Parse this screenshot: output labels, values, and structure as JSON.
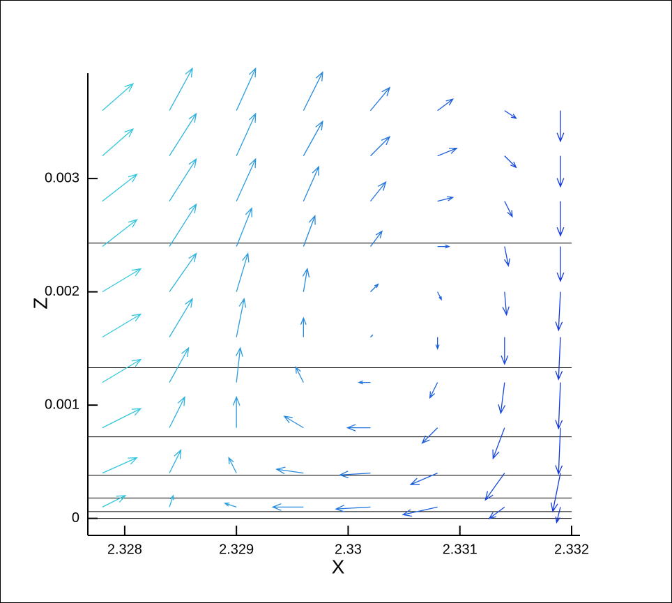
{
  "chart_data": {
    "type": "quiver",
    "xlabel": "X",
    "ylabel": "Z",
    "xlim": [
      2.32767,
      2.332
    ],
    "ylim": [
      -0.00015,
      0.00393
    ],
    "xticks": [
      2.328,
      2.329,
      2.33,
      2.331,
      2.332
    ],
    "yticks": [
      0,
      0.001,
      0.002,
      0.003
    ],
    "hlines": [
      0,
      6e-05,
      0.00018,
      0.00038,
      0.00072,
      0.00133,
      0.00243
    ],
    "color_range": [
      "#33ccdd",
      "#1133dd"
    ],
    "x": [
      2.3278,
      2.3278,
      2.3278,
      2.3278,
      2.3278,
      2.3278,
      2.3278,
      2.3278,
      2.3278,
      2.3278,
      2.3284,
      2.3284,
      2.3284,
      2.3284,
      2.3284,
      2.3284,
      2.3284,
      2.3284,
      2.3284,
      2.3284,
      2.329,
      2.329,
      2.329,
      2.329,
      2.329,
      2.329,
      2.329,
      2.329,
      2.329,
      2.329,
      2.3296,
      2.3296,
      2.3296,
      2.3296,
      2.3296,
      2.3296,
      2.3296,
      2.3296,
      2.3296,
      2.3296,
      2.3302,
      2.3302,
      2.3302,
      2.3302,
      2.3302,
      2.3302,
      2.3302,
      2.3302,
      2.3302,
      2.3302,
      2.3308,
      2.3308,
      2.3308,
      2.3308,
      2.3308,
      2.3308,
      2.3308,
      2.3308,
      2.3308,
      2.3308,
      2.3314,
      2.3314,
      2.3314,
      2.3314,
      2.3314,
      2.3314,
      2.3314,
      2.3314,
      2.3314,
      2.3314,
      2.3319,
      2.3319,
      2.3319,
      2.3319,
      2.3319,
      2.3319,
      2.3319,
      2.3319,
      2.3319,
      2.3319
    ],
    "y": [
      0.0001,
      0.0004,
      0.0008,
      0.0012,
      0.0016,
      0.002,
      0.0024,
      0.0028,
      0.0032,
      0.0036,
      0.0001,
      0.0004,
      0.0008,
      0.0012,
      0.0016,
      0.002,
      0.0024,
      0.0028,
      0.0032,
      0.0036,
      0.0001,
      0.0004,
      0.0008,
      0.0012,
      0.0016,
      0.002,
      0.0024,
      0.0028,
      0.0032,
      0.0036,
      0.0001,
      0.0004,
      0.0008,
      0.0012,
      0.0016,
      0.002,
      0.0024,
      0.0028,
      0.0032,
      0.0036,
      0.0001,
      0.0004,
      0.0008,
      0.0012,
      0.0016,
      0.002,
      0.0024,
      0.0028,
      0.0032,
      0.0036,
      0.0001,
      0.0004,
      0.0008,
      0.0012,
      0.0016,
      0.002,
      0.0024,
      0.0028,
      0.0032,
      0.0036,
      0.0001,
      0.0004,
      0.0008,
      0.0012,
      0.0016,
      0.002,
      0.0024,
      0.0028,
      0.0032,
      0.0036,
      0.0001,
      0.0004,
      0.0008,
      0.0012,
      0.0016,
      0.002,
      0.0024,
      0.0028,
      0.0032,
      0.0036
    ],
    "u": [
      0.6,
      0.9,
      1,
      1,
      1,
      1,
      0.9,
      0.9,
      0.8,
      0.8,
      0.1,
      0.3,
      0.4,
      0.5,
      0.6,
      0.7,
      0.7,
      0.7,
      0.7,
      0.6,
      -0.3,
      -0.2,
      0,
      0.1,
      0.2,
      0.3,
      0.4,
      0.5,
      0.5,
      0.5,
      -0.8,
      -0.7,
      -0.5,
      -0.2,
      0,
      0.1,
      0.3,
      0.4,
      0.5,
      0.5,
      -0.9,
      -0.8,
      -0.6,
      -0.3,
      0.05,
      0.2,
      0.3,
      0.4,
      0.5,
      0.5,
      -0.9,
      -0.7,
      -0.4,
      -0.2,
      0,
      0.1,
      0.3,
      0.4,
      0.5,
      0.4,
      -0.4,
      -0.5,
      -0.3,
      -0.1,
      0,
      0.05,
      0.1,
      0.2,
      0.3,
      0.3,
      -0.1,
      -0.2,
      -0.05,
      -0.05,
      -0.05,
      -0.05,
      0,
      0,
      0,
      0
    ],
    "v": [
      0.3,
      0.4,
      0.5,
      0.6,
      0.6,
      0.6,
      0.7,
      0.7,
      0.7,
      0.7,
      0.3,
      0.6,
      0.8,
      0.9,
      1,
      1,
      1.1,
      1.1,
      1.1,
      1.1,
      0.1,
      0.4,
      0.8,
      0.9,
      1,
      1,
      1,
      1.1,
      1.1,
      1.1,
      0,
      0.1,
      0.3,
      0.4,
      0.5,
      0.6,
      0.8,
      0.9,
      0.9,
      1,
      -0.05,
      -0.05,
      0,
      0,
      0.05,
      0.2,
      0.4,
      0.5,
      0.5,
      0.6,
      -0.2,
      -0.3,
      -0.4,
      -0.4,
      -0.3,
      -0.2,
      0,
      0.1,
      0.2,
      0.3,
      -0.3,
      -0.7,
      -0.8,
      -0.8,
      -0.7,
      -0.6,
      -0.5,
      -0.4,
      -0.3,
      -0.2,
      -0.4,
      -1,
      -1.2,
      -1.2,
      -1.1,
      -1,
      -0.9,
      -0.9,
      -0.8,
      -0.8
    ]
  }
}
